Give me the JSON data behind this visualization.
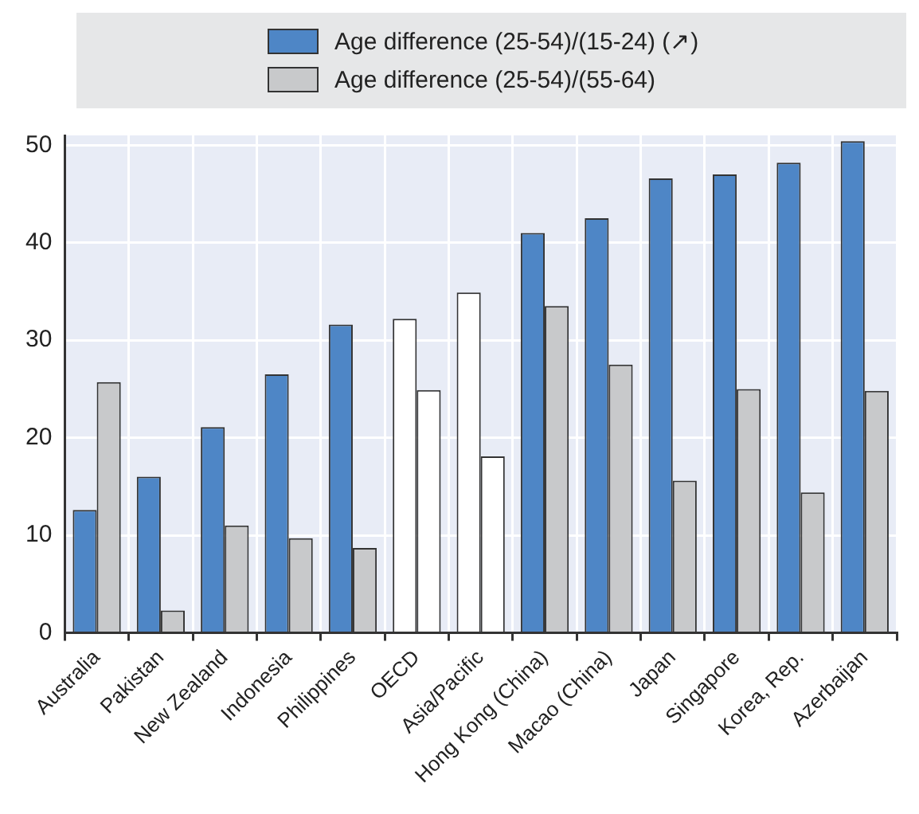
{
  "chart_data": {
    "type": "bar",
    "categories": [
      "Australia",
      "Pakistan",
      "New Zealand",
      "Indonesia",
      "Philippines",
      "OECD",
      "Asia/Pacific",
      "Hong Kong (China)",
      "Macao (China)",
      "Japan",
      "Singapore",
      "Korea, Rep.",
      "Azerbaijan"
    ],
    "series": [
      {
        "name": "Age difference (25-54)/(15-24) (↗)",
        "color": "#4e86c6",
        "colors": [
          "#4e86c6",
          "#4e86c6",
          "#4e86c6",
          "#4e86c6",
          "#4e86c6",
          "#ffffff",
          "#ffffff",
          "#4e86c6",
          "#4e86c6",
          "#4e86c6",
          "#4e86c6",
          "#4e86c6",
          "#4e86c6"
        ],
        "values": [
          12.6,
          16.0,
          21.1,
          26.5,
          31.6,
          32.2,
          34.9,
          41.0,
          42.5,
          46.6,
          47.0,
          48.2,
          50.4
        ]
      },
      {
        "name": "Age difference (25-54)/(55-64)",
        "color": "#c8c9cb",
        "colors": [
          "#c8c9cb",
          "#c8c9cb",
          "#c8c9cb",
          "#c8c9cb",
          "#c8c9cb",
          "#ffffff",
          "#ffffff",
          "#c8c9cb",
          "#c8c9cb",
          "#c8c9cb",
          "#c8c9cb",
          "#c8c9cb",
          "#c8c9cb"
        ],
        "values": [
          25.7,
          2.3,
          11.0,
          9.7,
          8.7,
          24.9,
          18.1,
          33.5,
          27.5,
          15.6,
          25.0,
          14.4,
          24.8
        ]
      }
    ],
    "ylim": [
      0,
      51
    ],
    "yticks": [
      0,
      10,
      20,
      30,
      40,
      50
    ],
    "grid": true,
    "legend": "top"
  }
}
